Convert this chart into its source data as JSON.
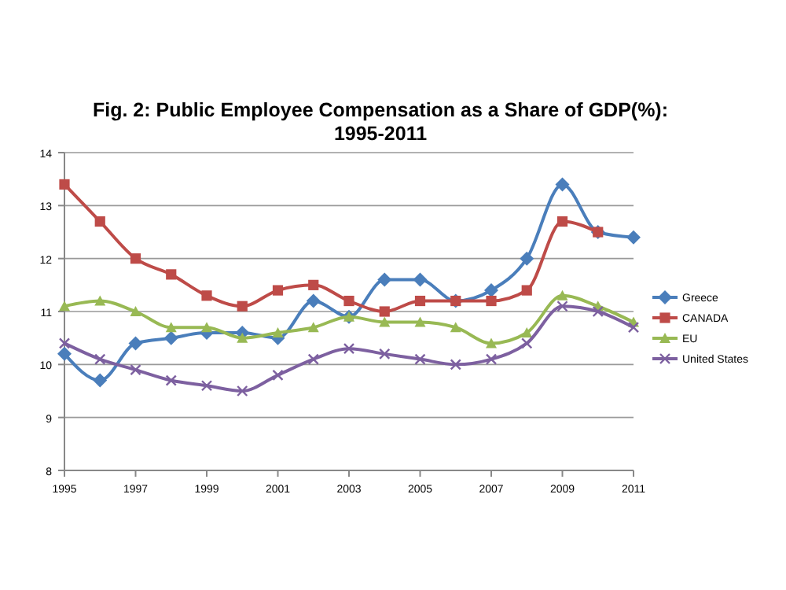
{
  "chart_data": {
    "type": "line",
    "title": "Fig. 2: Public Employee Compensation as a Share of GDP(%): 1995-2011",
    "x": [
      1995,
      1996,
      1997,
      1998,
      1999,
      2000,
      2001,
      2002,
      2003,
      2004,
      2005,
      2006,
      2007,
      2008,
      2009,
      2010,
      2011
    ],
    "series": [
      {
        "name": "Greece",
        "color": "#4a7ebb",
        "marker": "diamond",
        "values": [
          10.2,
          9.7,
          10.4,
          10.5,
          10.6,
          10.6,
          10.5,
          11.2,
          10.9,
          11.6,
          11.6,
          11.2,
          11.4,
          12.0,
          13.4,
          12.5,
          12.4
        ]
      },
      {
        "name": "CANADA",
        "color": "#be4b48",
        "marker": "square",
        "values": [
          13.4,
          12.7,
          12.0,
          11.7,
          11.3,
          11.1,
          11.4,
          11.5,
          11.2,
          11.0,
          11.2,
          11.2,
          11.2,
          11.4,
          12.7,
          12.5,
          null
        ]
      },
      {
        "name": "EU",
        "color": "#98b954",
        "marker": "triangle",
        "values": [
          11.1,
          11.2,
          11.0,
          10.7,
          10.7,
          10.5,
          10.6,
          10.7,
          10.9,
          10.8,
          10.8,
          10.7,
          10.4,
          10.6,
          11.3,
          11.1,
          10.8
        ]
      },
      {
        "name": "United States",
        "color": "#7d60a0",
        "marker": "cross",
        "values": [
          10.4,
          10.1,
          9.9,
          9.7,
          9.6,
          9.5,
          9.8,
          10.1,
          10.3,
          10.2,
          10.1,
          10.0,
          10.1,
          10.4,
          11.1,
          11.0,
          10.7
        ]
      }
    ],
    "xlim": [
      1995,
      2011
    ],
    "xticks": [
      1995,
      1997,
      1999,
      2001,
      2003,
      2005,
      2007,
      2009,
      2011
    ],
    "ylim": [
      8,
      14
    ],
    "yticks": [
      8,
      9,
      10,
      11,
      12,
      13,
      14
    ],
    "grid": "y",
    "legend": "right",
    "line_style": "solid"
  }
}
